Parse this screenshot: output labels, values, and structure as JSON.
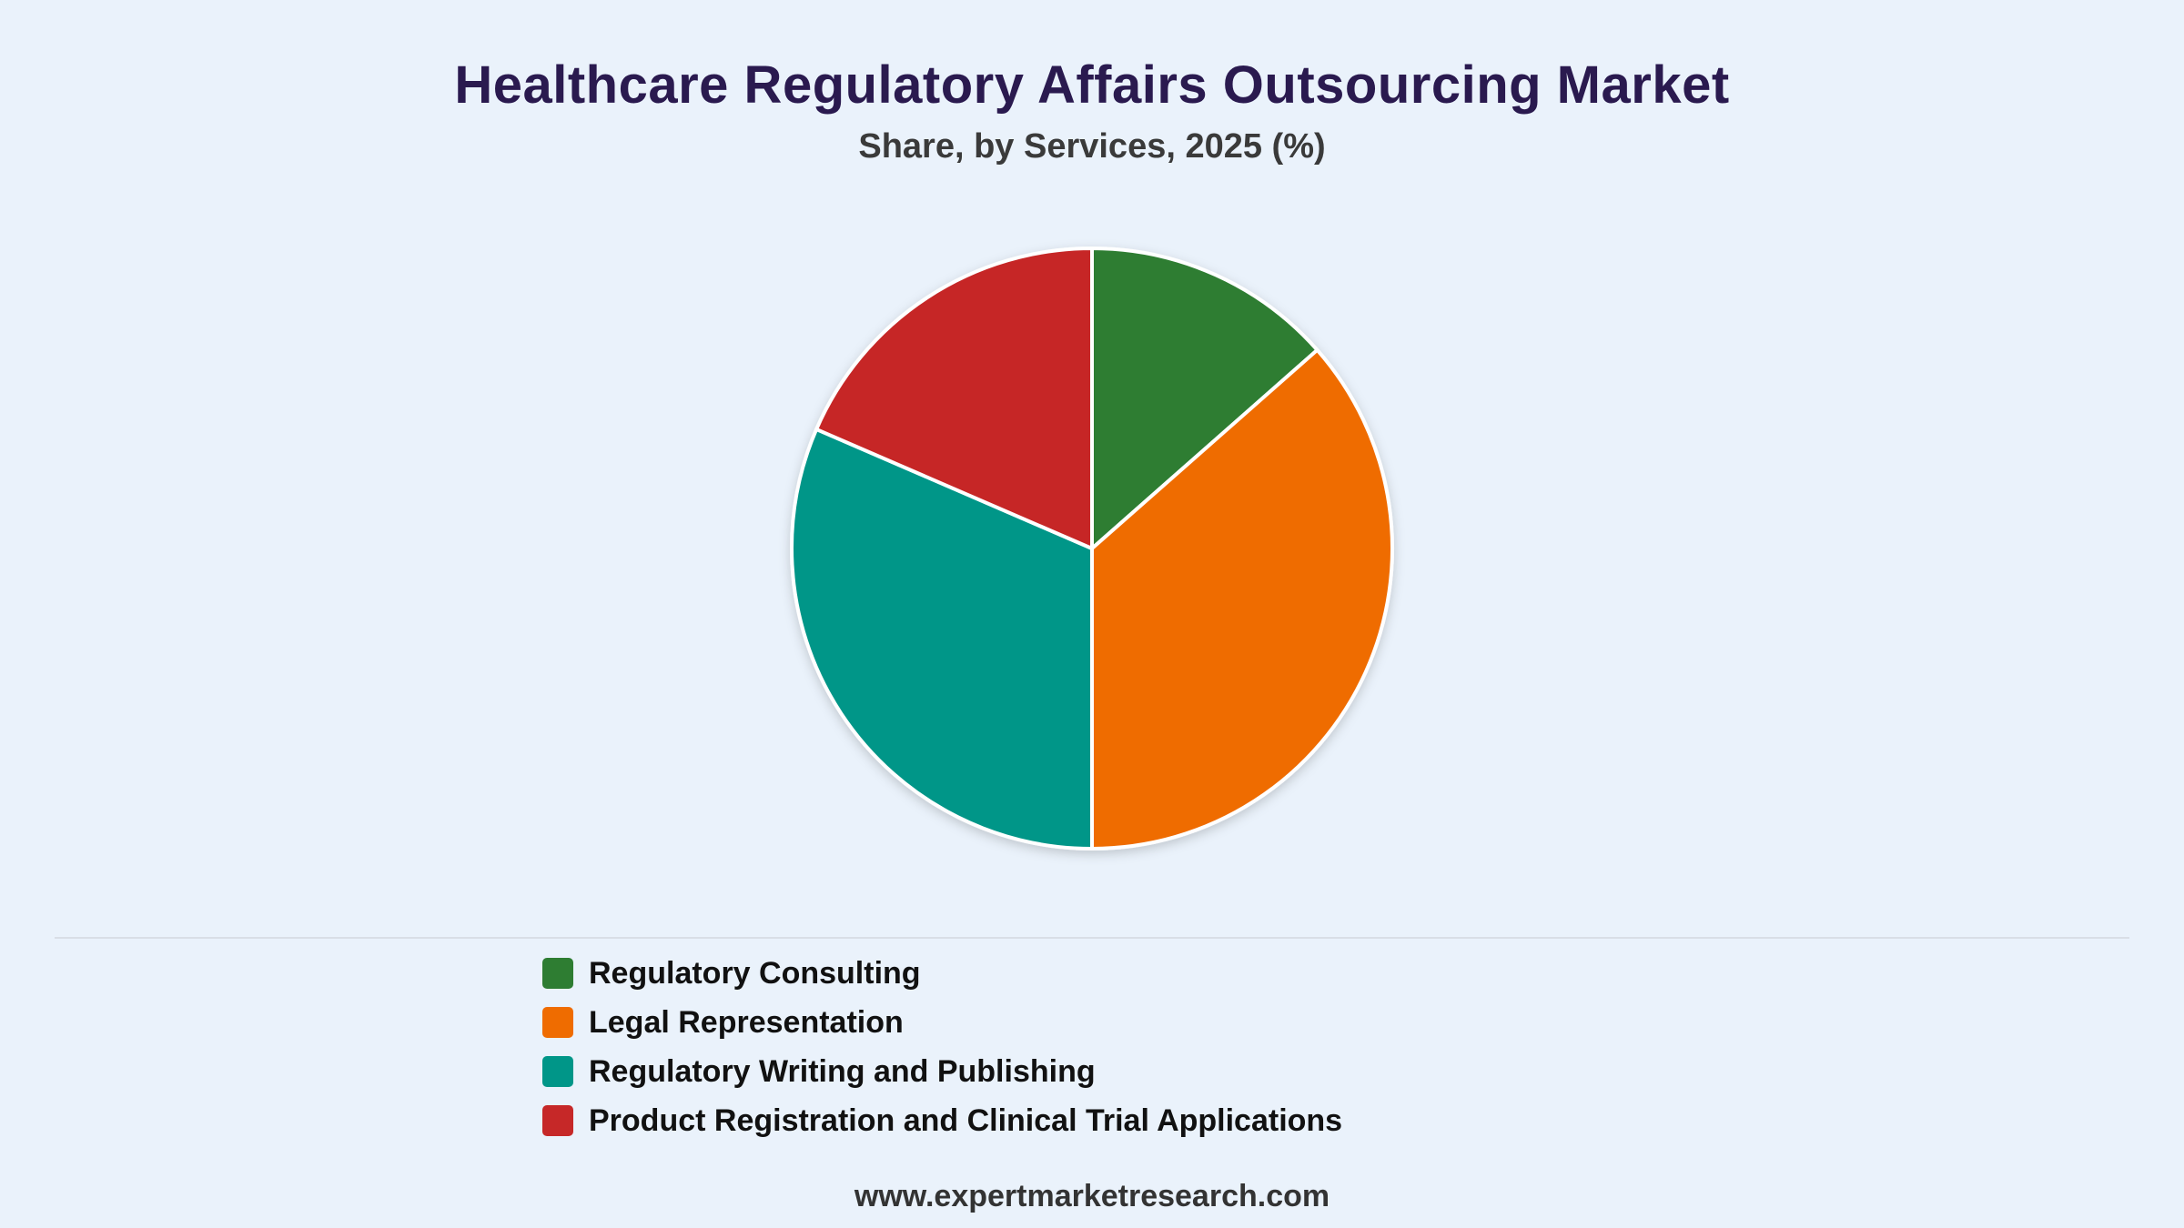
{
  "chart_data": {
    "type": "pie",
    "title": "Healthcare Regulatory Affairs Outsourcing Market",
    "subtitle": "Share, by Services, 2025 (%)",
    "categories": [
      "Regulatory Consulting",
      "Legal Representation",
      "Regulatory Writing and Publishing",
      "Product Registration and Clinical Trial Applications"
    ],
    "values": [
      13.5,
      36.5,
      31.5,
      18.5
    ],
    "colors": [
      "#2e7d32",
      "#ef6c00",
      "#009688",
      "#c62828"
    ],
    "legend_position": "bottom"
  },
  "footer": {
    "url": "www.expertmarketresearch.com"
  }
}
